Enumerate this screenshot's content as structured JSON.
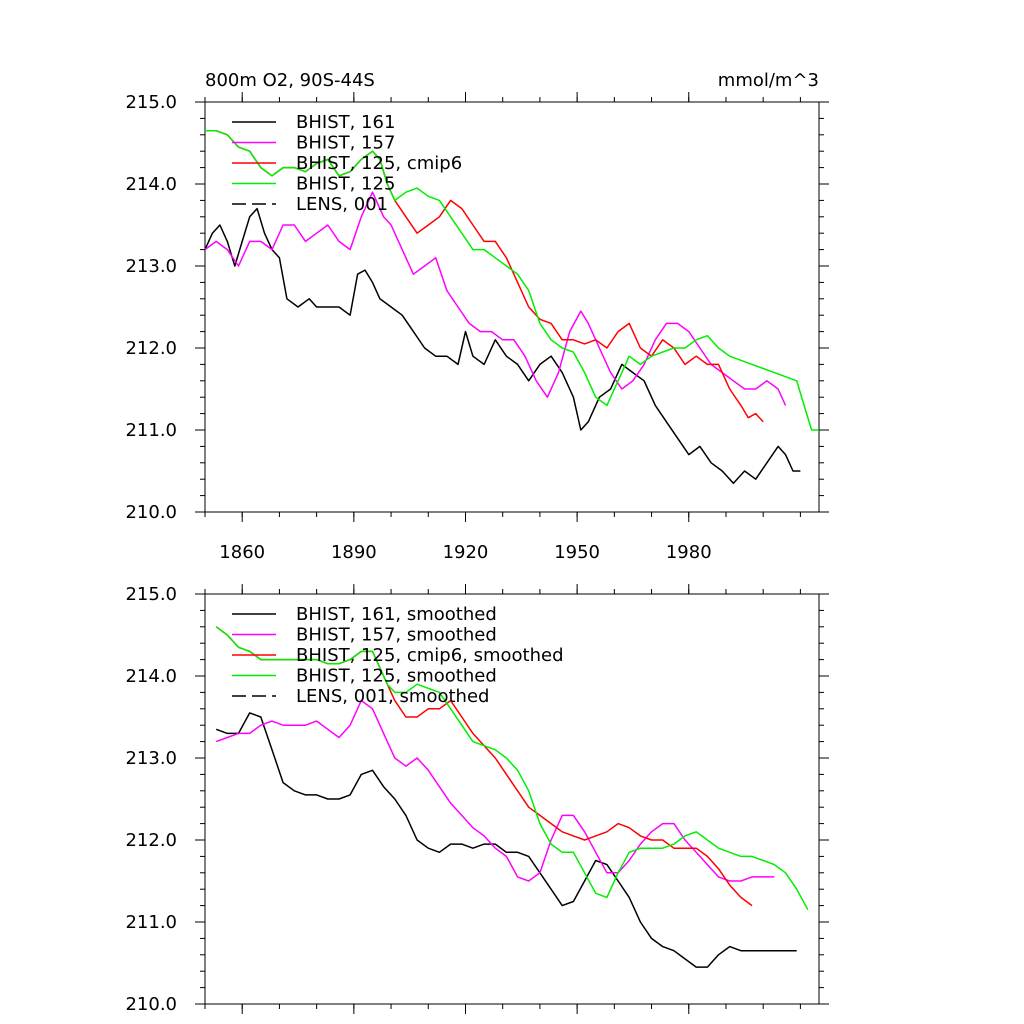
{
  "chart_data": [
    {
      "type": "line",
      "title": "800m O2, 90S-44S",
      "units_label": "mmol/m^3",
      "xlim": [
        1850,
        2015
      ],
      "ylim": [
        210.0,
        215.0
      ],
      "x_ticks": [
        1860,
        1890,
        1920,
        1950,
        1980
      ],
      "y_ticks": [
        "210.0",
        "211.0",
        "212.0",
        "213.0",
        "214.0",
        "215.0"
      ],
      "legend_position": "top-left",
      "series": [
        {
          "name": "BHIST, 161",
          "color": "#000000",
          "dash": "solid",
          "x": [
            1850,
            1852,
            1854,
            1856,
            1858,
            1860,
            1862,
            1864,
            1866,
            1868,
            1870,
            1872,
            1875,
            1878,
            1880,
            1883,
            1886,
            1889,
            1891,
            1893,
            1895,
            1897,
            1900,
            1903,
            1906,
            1909,
            1912,
            1915,
            1918,
            1920,
            1922,
            1925,
            1928,
            1931,
            1934,
            1937,
            1940,
            1943,
            1946,
            1949,
            1951,
            1953,
            1956,
            1959,
            1962,
            1965,
            1968,
            1971,
            1974,
            1977,
            1980,
            1983,
            1986,
            1989,
            1992,
            1995,
            1998,
            2001,
            2004,
            2006,
            2008,
            2010
          ],
          "values": [
            213.2,
            213.4,
            213.5,
            213.3,
            213.0,
            213.3,
            213.6,
            213.7,
            213.4,
            213.2,
            213.1,
            212.6,
            212.5,
            212.6,
            212.5,
            212.5,
            212.5,
            212.4,
            212.9,
            212.95,
            212.8,
            212.6,
            212.5,
            212.4,
            212.2,
            212.0,
            211.9,
            211.9,
            211.8,
            212.2,
            211.9,
            211.8,
            212.1,
            211.9,
            211.8,
            211.6,
            211.8,
            211.9,
            211.7,
            211.4,
            211.0,
            211.1,
            211.4,
            211.5,
            211.8,
            211.7,
            211.6,
            211.3,
            211.1,
            210.9,
            210.7,
            210.8,
            210.6,
            210.5,
            210.35,
            210.5,
            210.4,
            210.6,
            210.8,
            210.7,
            210.5,
            210.5
          ]
        },
        {
          "name": "BHIST, 157",
          "color": "#ff00ff",
          "dash": "solid",
          "x": [
            1850,
            1853,
            1856,
            1859,
            1862,
            1865,
            1868,
            1871,
            1874,
            1877,
            1880,
            1883,
            1886,
            1889,
            1892,
            1895,
            1898,
            1900,
            1903,
            1906,
            1909,
            1912,
            1915,
            1918,
            1921,
            1924,
            1927,
            1930,
            1933,
            1936,
            1939,
            1942,
            1945,
            1948,
            1951,
            1953,
            1956,
            1959,
            1962,
            1965,
            1968,
            1971,
            1974,
            1977,
            1980,
            1983,
            1986,
            1989,
            1992,
            1995,
            1998,
            2001,
            2004,
            2006
          ],
          "values": [
            213.2,
            213.3,
            213.2,
            213.0,
            213.3,
            213.3,
            213.2,
            213.5,
            213.5,
            213.3,
            213.4,
            213.5,
            213.3,
            213.2,
            213.6,
            213.9,
            213.6,
            213.5,
            213.2,
            212.9,
            213.0,
            213.1,
            212.7,
            212.5,
            212.3,
            212.2,
            212.2,
            212.1,
            212.1,
            211.9,
            211.6,
            211.4,
            211.7,
            212.2,
            212.45,
            212.3,
            212.0,
            211.7,
            211.5,
            211.6,
            211.8,
            212.1,
            212.3,
            212.3,
            212.2,
            212.0,
            211.8,
            211.7,
            211.6,
            211.5,
            211.5,
            211.6,
            211.5,
            211.3
          ]
        },
        {
          "name": "BHIST, 125, cmip6",
          "color": "#ff0000",
          "dash": "solid",
          "x": [
            1850,
            1853,
            1856,
            1859,
            1862,
            1865,
            1868,
            1871,
            1874,
            1877,
            1880,
            1883,
            1886,
            1889,
            1892,
            1895,
            1897,
            1899,
            1901,
            1904,
            1907,
            1910,
            1913,
            1916,
            1919,
            1922,
            1925,
            1928,
            1931,
            1934,
            1937,
            1940,
            1943,
            1946,
            1949,
            1952,
            1955,
            1958,
            1961,
            1964,
            1967,
            1970,
            1973,
            1976,
            1979,
            1982,
            1985,
            1988,
            1991,
            1994,
            1996,
            1998,
            2000
          ],
          "values": [
            214.65,
            214.65,
            214.6,
            214.45,
            214.4,
            214.2,
            214.1,
            214.2,
            214.2,
            214.15,
            214.25,
            214.3,
            214.1,
            214.15,
            214.3,
            214.4,
            214.3,
            214.0,
            213.8,
            213.6,
            213.4,
            213.5,
            213.6,
            213.8,
            213.7,
            213.5,
            213.3,
            213.3,
            213.1,
            212.8,
            212.5,
            212.35,
            212.3,
            212.1,
            212.1,
            212.05,
            212.1,
            212.0,
            212.2,
            212.3,
            212.0,
            211.9,
            212.1,
            212.0,
            211.8,
            211.9,
            211.8,
            211.8,
            211.5,
            211.3,
            211.15,
            211.2,
            211.1
          ]
        },
        {
          "name": "BHIST, 125",
          "color": "#00ee00",
          "dash": "solid",
          "x": [
            1850,
            1853,
            1856,
            1859,
            1862,
            1865,
            1868,
            1871,
            1874,
            1877,
            1880,
            1883,
            1886,
            1889,
            1892,
            1895,
            1897,
            1899,
            1901,
            1904,
            1907,
            1910,
            1913,
            1916,
            1919,
            1922,
            1925,
            1928,
            1931,
            1934,
            1937,
            1940,
            1943,
            1946,
            1949,
            1952,
            1955,
            1958,
            1961,
            1964,
            1967,
            1970,
            1973,
            1976,
            1979,
            1982,
            1985,
            1988,
            1991,
            1994,
            1997,
            2000,
            2003,
            2006,
            2009,
            2011,
            2013,
            2015
          ],
          "values": [
            214.65,
            214.65,
            214.6,
            214.45,
            214.4,
            214.2,
            214.1,
            214.2,
            214.2,
            214.15,
            214.25,
            214.3,
            214.1,
            214.15,
            214.3,
            214.4,
            214.3,
            214.0,
            213.8,
            213.9,
            213.95,
            213.85,
            213.8,
            213.6,
            213.4,
            213.2,
            213.2,
            213.1,
            213.0,
            212.9,
            212.7,
            212.3,
            212.1,
            212.0,
            211.95,
            211.7,
            211.4,
            211.3,
            211.6,
            211.9,
            211.8,
            211.9,
            211.95,
            212.0,
            212.0,
            212.1,
            212.15,
            212.0,
            211.9,
            211.85,
            211.8,
            211.75,
            211.7,
            211.65,
            211.6,
            211.3,
            211.0,
            211.0
          ]
        },
        {
          "name": "LENS, 001",
          "color": "#000000",
          "dash": "dashed",
          "x": [],
          "values": []
        }
      ]
    },
    {
      "type": "line",
      "title": "",
      "xlim": [
        1850,
        2015
      ],
      "ylim": [
        210.0,
        215.0
      ],
      "x_ticks": [
        1860,
        1890,
        1920,
        1950,
        1980
      ],
      "y_ticks": [
        "210.0",
        "211.0",
        "212.0",
        "213.0",
        "214.0",
        "215.0"
      ],
      "legend_position": "top-left",
      "series": [
        {
          "name": "BHIST, 161, smoothed",
          "color": "#000000",
          "dash": "solid",
          "x": [
            1853,
            1856,
            1859,
            1862,
            1865,
            1868,
            1871,
            1874,
            1877,
            1880,
            1883,
            1886,
            1889,
            1892,
            1895,
            1898,
            1901,
            1904,
            1907,
            1910,
            1913,
            1916,
            1919,
            1922,
            1925,
            1928,
            1931,
            1934,
            1937,
            1940,
            1943,
            1946,
            1949,
            1952,
            1955,
            1958,
            1961,
            1964,
            1967,
            1970,
            1973,
            1976,
            1979,
            1982,
            1985,
            1988,
            1991,
            1994,
            1997,
            2000,
            2003,
            2006,
            2009
          ],
          "values": [
            213.35,
            213.3,
            213.3,
            213.55,
            213.5,
            213.1,
            212.7,
            212.6,
            212.55,
            212.55,
            212.5,
            212.5,
            212.55,
            212.8,
            212.85,
            212.65,
            212.5,
            212.3,
            212.0,
            211.9,
            211.85,
            211.95,
            211.95,
            211.9,
            211.95,
            211.95,
            211.85,
            211.85,
            211.8,
            211.6,
            211.4,
            211.2,
            211.25,
            211.5,
            211.75,
            211.7,
            211.5,
            211.3,
            211.0,
            210.8,
            210.7,
            210.65,
            210.55,
            210.45,
            210.45,
            210.6,
            210.7,
            210.65,
            210.65,
            210.65,
            210.65,
            210.65,
            210.65
          ]
        },
        {
          "name": "BHIST, 157, smoothed",
          "color": "#ff00ff",
          "dash": "solid",
          "x": [
            1853,
            1856,
            1859,
            1862,
            1865,
            1868,
            1871,
            1874,
            1877,
            1880,
            1883,
            1886,
            1889,
            1892,
            1895,
            1898,
            1901,
            1904,
            1907,
            1910,
            1913,
            1916,
            1919,
            1922,
            1925,
            1928,
            1931,
            1934,
            1937,
            1940,
            1943,
            1946,
            1949,
            1952,
            1955,
            1958,
            1961,
            1964,
            1967,
            1970,
            1973,
            1976,
            1979,
            1982,
            1985,
            1988,
            1991,
            1994,
            1997,
            2000,
            2003
          ],
          "values": [
            213.2,
            213.25,
            213.3,
            213.3,
            213.4,
            213.45,
            213.4,
            213.4,
            213.4,
            213.45,
            213.35,
            213.25,
            213.4,
            213.7,
            213.6,
            213.3,
            213.0,
            212.9,
            213.0,
            212.85,
            212.65,
            212.45,
            212.3,
            212.15,
            212.05,
            211.9,
            211.8,
            211.55,
            211.5,
            211.6,
            212.0,
            212.3,
            212.3,
            212.1,
            211.85,
            211.6,
            211.6,
            211.75,
            211.95,
            212.1,
            212.2,
            212.2,
            212.0,
            211.85,
            211.7,
            211.55,
            211.5,
            211.5,
            211.55,
            211.55,
            211.55
          ]
        },
        {
          "name": "BHIST, 125, cmip6, smoothed",
          "color": "#ff0000",
          "dash": "solid",
          "x": [
            1853,
            1856,
            1859,
            1862,
            1865,
            1868,
            1871,
            1874,
            1877,
            1880,
            1883,
            1886,
            1889,
            1892,
            1895,
            1897,
            1899,
            1901,
            1904,
            1907,
            1910,
            1913,
            1916,
            1919,
            1922,
            1925,
            1928,
            1931,
            1934,
            1937,
            1940,
            1943,
            1946,
            1949,
            1952,
            1955,
            1958,
            1961,
            1964,
            1967,
            1970,
            1973,
            1976,
            1979,
            1982,
            1985,
            1988,
            1991,
            1994,
            1997
          ],
          "values": [
            214.6,
            214.5,
            214.35,
            214.3,
            214.2,
            214.2,
            214.2,
            214.2,
            214.2,
            214.2,
            214.15,
            214.15,
            214.2,
            214.3,
            214.3,
            214.1,
            213.9,
            213.7,
            213.5,
            213.5,
            213.6,
            213.6,
            213.7,
            213.5,
            213.3,
            213.15,
            213.0,
            212.8,
            212.6,
            212.4,
            212.3,
            212.2,
            212.1,
            212.05,
            212.0,
            212.05,
            212.1,
            212.2,
            212.15,
            212.05,
            212.0,
            212.0,
            211.9,
            211.9,
            211.9,
            211.8,
            211.65,
            211.45,
            211.3,
            211.2
          ]
        },
        {
          "name": "BHIST, 125, smoothed",
          "color": "#00ee00",
          "dash": "solid",
          "x": [
            1853,
            1856,
            1859,
            1862,
            1865,
            1868,
            1871,
            1874,
            1877,
            1880,
            1883,
            1886,
            1889,
            1892,
            1895,
            1897,
            1899,
            1901,
            1904,
            1907,
            1910,
            1913,
            1916,
            1919,
            1922,
            1925,
            1928,
            1931,
            1934,
            1937,
            1940,
            1943,
            1946,
            1949,
            1952,
            1955,
            1958,
            1961,
            1964,
            1967,
            1970,
            1973,
            1976,
            1979,
            1982,
            1985,
            1988,
            1991,
            1994,
            1997,
            2000,
            2003,
            2006,
            2009,
            2012
          ],
          "values": [
            214.6,
            214.5,
            214.35,
            214.3,
            214.2,
            214.2,
            214.2,
            214.2,
            214.2,
            214.2,
            214.15,
            214.15,
            214.2,
            214.3,
            214.3,
            214.1,
            213.9,
            213.8,
            213.8,
            213.9,
            213.85,
            213.8,
            213.6,
            213.4,
            213.2,
            213.15,
            213.1,
            213.0,
            212.85,
            212.6,
            212.2,
            211.95,
            211.85,
            211.85,
            211.6,
            211.35,
            211.3,
            211.6,
            211.85,
            211.9,
            211.9,
            211.9,
            211.95,
            212.05,
            212.1,
            212.0,
            211.9,
            211.85,
            211.8,
            211.8,
            211.75,
            211.7,
            211.6,
            211.4,
            211.15
          ]
        },
        {
          "name": "LENS, 001, smoothed",
          "color": "#000000",
          "dash": "dashed",
          "x": [],
          "values": []
        }
      ]
    }
  ]
}
